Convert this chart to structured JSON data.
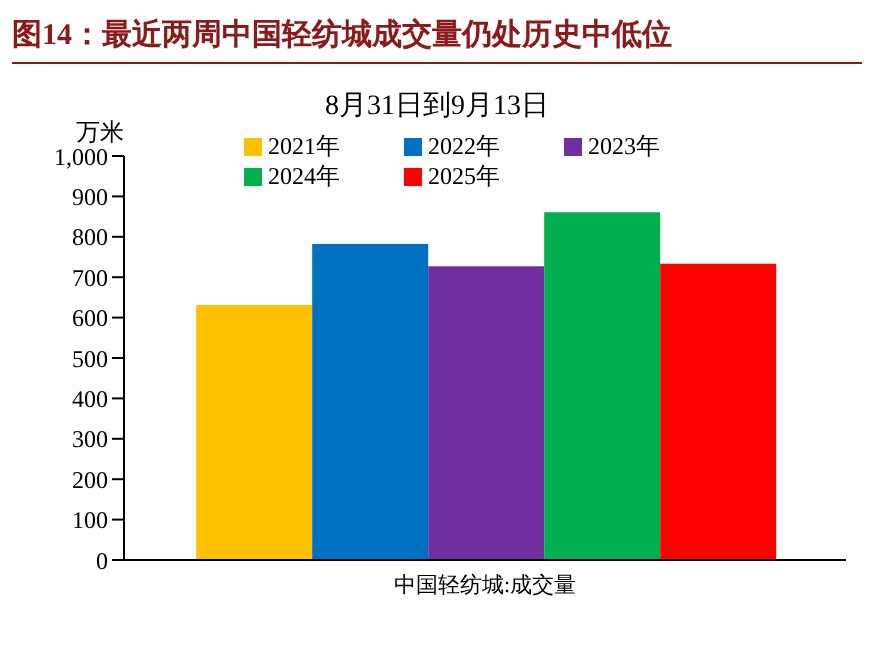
{
  "chart_data": {
    "type": "bar",
    "title": "图14：最近两周中国轻纺城成交量仍处历史中低位",
    "subtitle": "8月31日到9月13日",
    "ylabel": "万米",
    "categories": [
      "中国轻纺城:成交量"
    ],
    "series": [
      {
        "name": "2021年",
        "color": "#ffc000",
        "values": [
          631
        ]
      },
      {
        "name": "2022年",
        "color": "#0070c0",
        "values": [
          782
        ]
      },
      {
        "name": "2023年",
        "color": "#7030a0",
        "values": [
          727
        ]
      },
      {
        "name": "2024年",
        "color": "#00b050",
        "values": [
          861
        ]
      },
      {
        "name": "2025年",
        "color": "#ff0000",
        "values": [
          733
        ]
      }
    ],
    "ylim": [
      0,
      1000
    ],
    "yticks": [
      0,
      100,
      200,
      300,
      400,
      500,
      600,
      700,
      800,
      900,
      {
        "value": 1000,
        "label": "1,000"
      }
    ],
    "grid": false,
    "legend": "top"
  }
}
